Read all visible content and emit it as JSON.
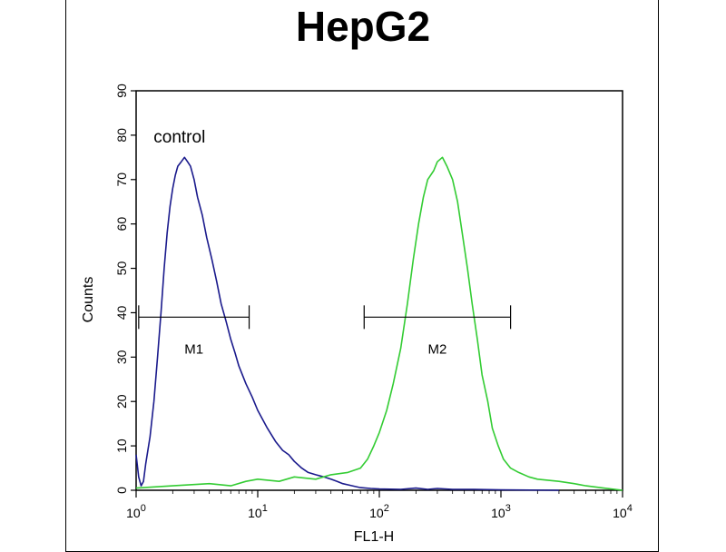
{
  "chart_data": {
    "type": "area",
    "title": "HepG2",
    "xlabel": "FL1-H",
    "ylabel": "Counts",
    "x_scale": "log",
    "xlim": [
      1,
      10000
    ],
    "ylim": [
      0,
      90
    ],
    "x_ticks": [
      {
        "value": 1,
        "base": "10",
        "exp": "0"
      },
      {
        "value": 10,
        "base": "10",
        "exp": "1"
      },
      {
        "value": 100,
        "base": "10",
        "exp": "2"
      },
      {
        "value": 1000,
        "base": "10",
        "exp": "3"
      },
      {
        "value": 10000,
        "base": "10",
        "exp": "4"
      }
    ],
    "y_ticks": [
      0,
      10,
      20,
      30,
      40,
      50,
      60,
      70,
      80,
      90
    ],
    "annotations": [
      {
        "text": "control",
        "x": 1.3,
        "y": 80
      }
    ],
    "markers": [
      {
        "label": "M1",
        "x_start": 1.05,
        "x_end": 8.5,
        "y": 39
      },
      {
        "label": "M2",
        "x_start": 75,
        "x_end": 1200,
        "y": 39
      }
    ],
    "series": [
      {
        "color": "#1a1a8c",
        "points": [
          [
            1.0,
            8
          ],
          [
            1.05,
            3
          ],
          [
            1.1,
            1
          ],
          [
            1.15,
            2
          ],
          [
            1.2,
            6
          ],
          [
            1.3,
            12
          ],
          [
            1.4,
            20
          ],
          [
            1.5,
            30
          ],
          [
            1.6,
            40
          ],
          [
            1.7,
            50
          ],
          [
            1.8,
            58
          ],
          [
            1.9,
            64
          ],
          [
            2.0,
            68
          ],
          [
            2.1,
            71
          ],
          [
            2.2,
            73
          ],
          [
            2.35,
            74
          ],
          [
            2.5,
            75
          ],
          [
            2.65,
            74
          ],
          [
            2.8,
            73
          ],
          [
            3.0,
            70
          ],
          [
            3.2,
            66
          ],
          [
            3.5,
            62
          ],
          [
            3.8,
            57
          ],
          [
            4.2,
            52
          ],
          [
            4.6,
            47
          ],
          [
            5.0,
            42
          ],
          [
            5.5,
            38
          ],
          [
            6.0,
            34
          ],
          [
            6.5,
            31
          ],
          [
            7.0,
            28
          ],
          [
            8.0,
            24
          ],
          [
            9.0,
            21
          ],
          [
            10,
            18
          ],
          [
            12,
            14
          ],
          [
            14,
            11
          ],
          [
            16,
            9
          ],
          [
            18,
            8
          ],
          [
            20,
            6.5
          ],
          [
            23,
            5
          ],
          [
            26,
            4
          ],
          [
            30,
            3.5
          ],
          [
            35,
            3
          ],
          [
            40,
            2.5
          ],
          [
            45,
            2
          ],
          [
            50,
            1.5
          ],
          [
            60,
            1
          ],
          [
            70,
            0.6
          ],
          [
            85,
            0.4
          ],
          [
            100,
            0.3
          ],
          [
            150,
            0.2
          ],
          [
            200,
            0.5
          ],
          [
            250,
            0.2
          ],
          [
            300,
            0.4
          ],
          [
            400,
            0.2
          ],
          [
            600,
            0.2
          ],
          [
            1000,
            0.1
          ],
          [
            3000,
            0
          ]
        ]
      },
      {
        "color": "#33cc33",
        "points": [
          [
            1.0,
            0.5
          ],
          [
            2,
            1
          ],
          [
            4,
            1.5
          ],
          [
            6,
            1
          ],
          [
            8,
            2
          ],
          [
            10,
            2.5
          ],
          [
            15,
            2
          ],
          [
            20,
            3
          ],
          [
            30,
            2.5
          ],
          [
            40,
            3.5
          ],
          [
            55,
            4
          ],
          [
            70,
            5
          ],
          [
            80,
            7
          ],
          [
            90,
            10
          ],
          [
            100,
            13
          ],
          [
            115,
            18
          ],
          [
            130,
            24
          ],
          [
            150,
            32
          ],
          [
            170,
            42
          ],
          [
            190,
            52
          ],
          [
            210,
            60
          ],
          [
            230,
            66
          ],
          [
            250,
            70
          ],
          [
            280,
            72
          ],
          [
            300,
            74
          ],
          [
            330,
            75
          ],
          [
            360,
            73
          ],
          [
            400,
            70
          ],
          [
            440,
            65
          ],
          [
            480,
            58
          ],
          [
            530,
            50
          ],
          [
            580,
            42
          ],
          [
            640,
            34
          ],
          [
            700,
            26
          ],
          [
            780,
            20
          ],
          [
            850,
            14
          ],
          [
            950,
            10
          ],
          [
            1050,
            7
          ],
          [
            1200,
            5
          ],
          [
            1400,
            4
          ],
          [
            1700,
            3
          ],
          [
            2000,
            2.5
          ],
          [
            3000,
            2
          ],
          [
            4000,
            1.5
          ],
          [
            5000,
            1
          ],
          [
            7000,
            0.5
          ],
          [
            10000,
            0
          ]
        ]
      }
    ]
  }
}
